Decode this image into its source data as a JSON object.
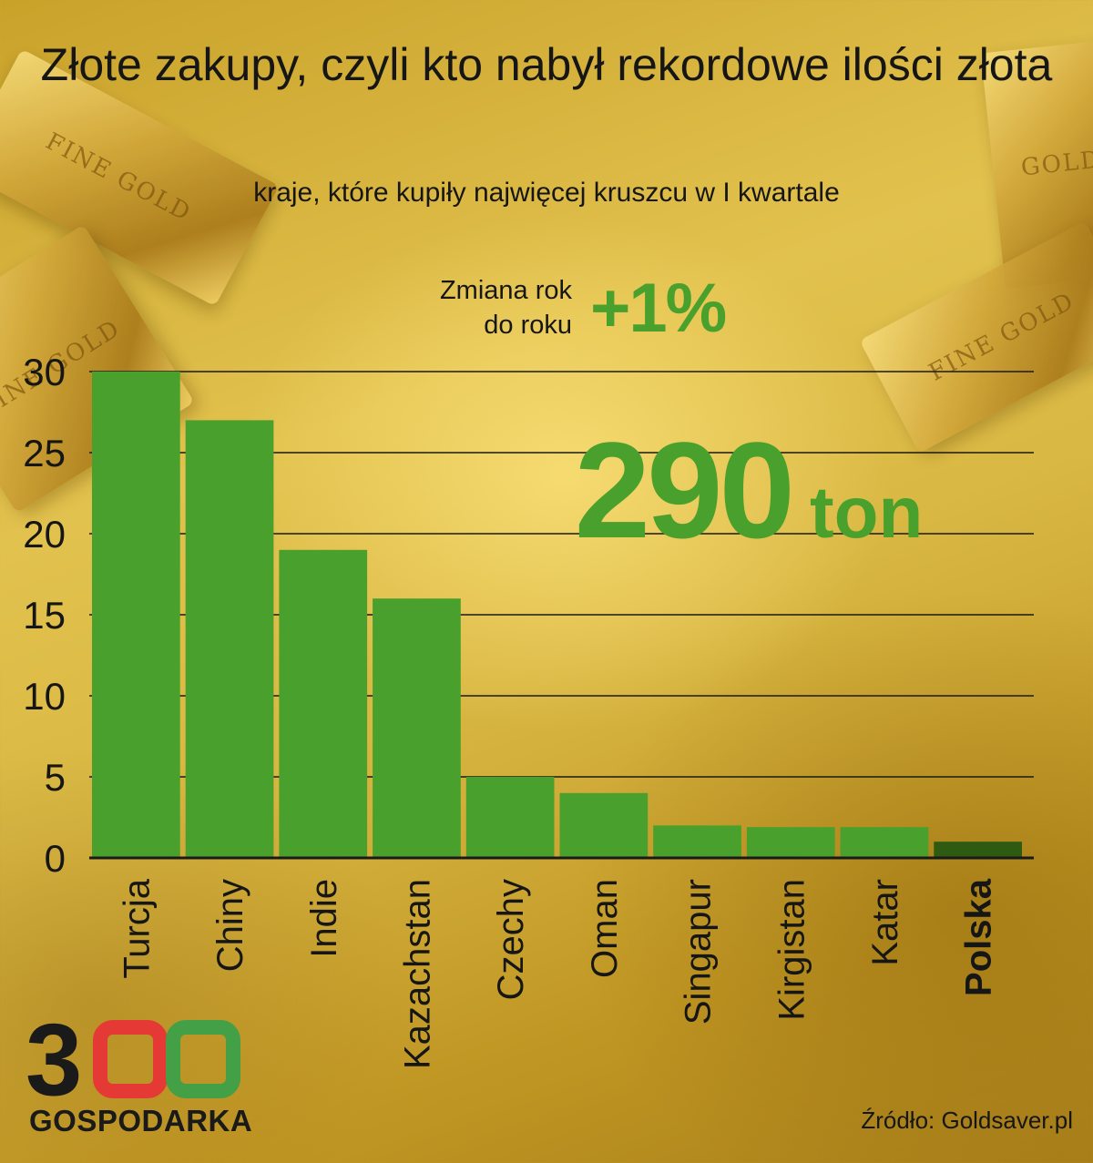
{
  "title": "Złote zakupy, czyli kto nabył rekordowe ilości złota",
  "subtitle": "kraje, które kupiły najwięcej kruszcu w I kwartale",
  "yoy": {
    "label_line1": "Zmiana rok",
    "label_line2": "do roku",
    "value": "+1%"
  },
  "total": {
    "value": "290",
    "unit": "ton"
  },
  "source": "Źródło: Goldsaver.pl",
  "logo": {
    "digits": "300",
    "name": "GOSPODARKA",
    "colors": {
      "three": "#1a1a1a",
      "zero1": "#e53935",
      "zero2": "#43a047"
    }
  },
  "decor_text": [
    "FINE GOLD",
    "FINE GOLD",
    "GOLD",
    "FINE GOLD"
  ],
  "colors": {
    "bar": "#4aa02c",
    "bar_highlight": "#2e5a12",
    "gridline": "#1a1a1a",
    "accent": "#4aa02c"
  },
  "chart_data": {
    "type": "bar",
    "categories": [
      "Turcja",
      "Chiny",
      "Indie",
      "Kazachstan",
      "Czechy",
      "Oman",
      "Singapur",
      "Kirgistan",
      "Katar",
      "Polska"
    ],
    "values": [
      30,
      27,
      19,
      16,
      5,
      4,
      2,
      1.9,
      1.9,
      1
    ],
    "highlight": "Polska",
    "title": "Złote zakupy, czyli kto nabył rekordowe ilości złota",
    "ylim": [
      0,
      30
    ],
    "yticks": [
      "0",
      "5",
      "10",
      "15",
      "20",
      "25",
      "30"
    ],
    "grid": true,
    "xlabel": "",
    "ylabel": ""
  }
}
